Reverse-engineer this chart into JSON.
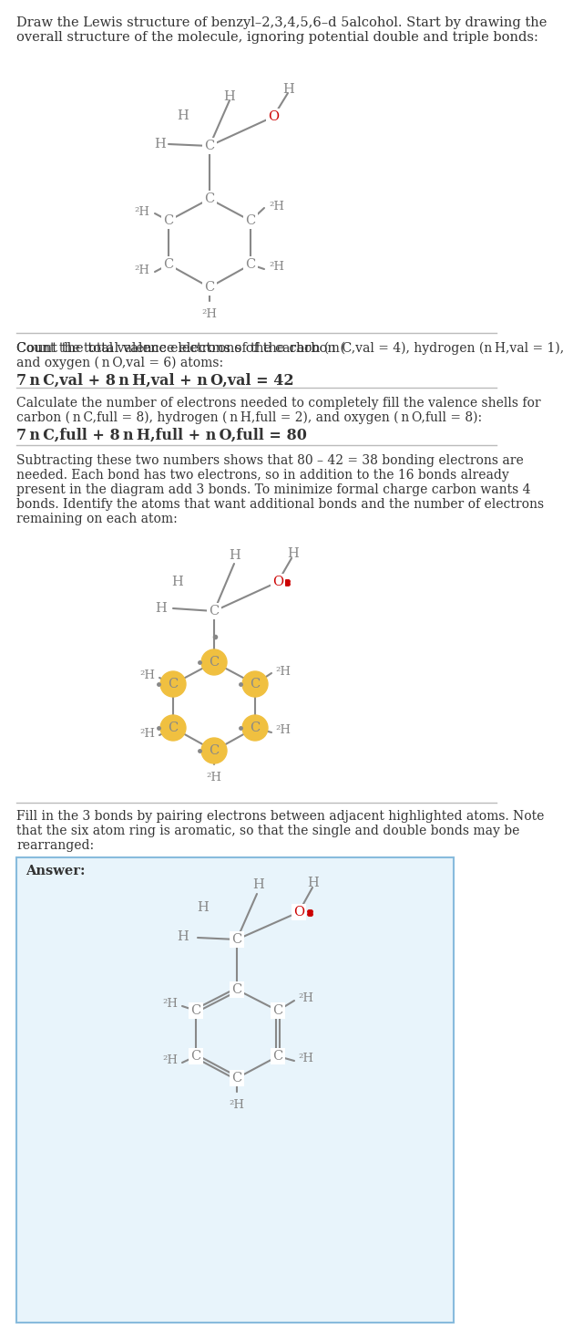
{
  "title_text": "Draw the Lewis structure of benzyl–2,3,4,5,6–d 5alcohol. Start by drawing the\noverall structure of the molecule, ignoring potential double and triple bonds:",
  "section2_text": "Count the total valence electrons of the carbon ($n_{\\mathrm{C,val}}=4$), hydrogen ($n_{\\mathrm{H,val}}=1$),\nand oxygen ($n_{\\mathrm{O,val}}=6$) atoms:\n$7\\,n_{\\mathrm{C,val}}+8\\,n_{\\mathrm{H,val}}+n_{\\mathrm{O,val}}=42$",
  "section3_text": "Calculate the number of electrons needed to completely fill the valence shells for\ncarbon ($n_{\\mathrm{C,full}}=8$), hydrogen ($n_{\\mathrm{H,full}}=2$), and oxygen ($n_{\\mathrm{O,full}}=8$):\n$7\\,n_{\\mathrm{C,full}}+8\\,n_{\\mathrm{H,full}}+n_{\\mathrm{O,full}}=80$",
  "section4_text": "Subtracting these two numbers shows that $80-42=38$ bonding electrons are\nneeded. Each bond has two electrons, so in addition to the 16 bonds already\npresent in the diagram add 3 bonds. To minimize formal charge carbon wants 4\nbonds. Identify the atoms that want additional bonds and the number of electrons\nremaining on each atom:",
  "section5_text": "Fill in the 3 bonds by pairing electrons between adjacent highlighted atoms. Note\nthat the six atom ring is aromatic, so that the single and double bonds may be\nrearranged:",
  "answer_label": "Answer:",
  "bg_color": "#ffffff",
  "text_color": "#333333",
  "bond_color": "#888888",
  "atom_C_color": "#888888",
  "atom_H_color": "#888888",
  "atom_O_color": "#cc0000",
  "highlight_color": "#f0c040",
  "answer_bg": "#e8f4fb",
  "answer_border": "#88bbdd"
}
